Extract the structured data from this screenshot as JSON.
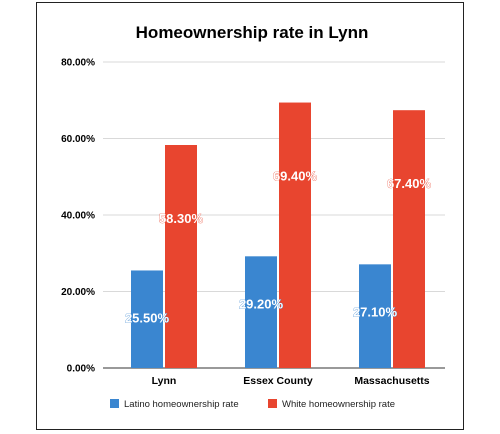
{
  "chart_data": {
    "type": "bar",
    "title": "Homeownership rate in Lynn",
    "categories": [
      "Lynn",
      "Essex County",
      "Massachusetts"
    ],
    "series": [
      {
        "name": "Latino homeownership rate",
        "values": [
          25.5,
          29.2,
          27.1
        ],
        "labels": [
          "25.50%",
          "29.20%",
          "27.10%"
        ],
        "color": "#3a86d0"
      },
      {
        "name": "White homeownership rate",
        "values": [
          58.3,
          69.4,
          67.4
        ],
        "labels": [
          "58.30%",
          "69.40%",
          "67.40%"
        ],
        "color": "#e8452f"
      }
    ],
    "yticks": [
      "0.00%",
      "20.00%",
      "40.00%",
      "60.00%",
      "80.00%"
    ],
    "ylim": [
      0,
      80
    ],
    "grid": true,
    "legend": "bottom"
  }
}
